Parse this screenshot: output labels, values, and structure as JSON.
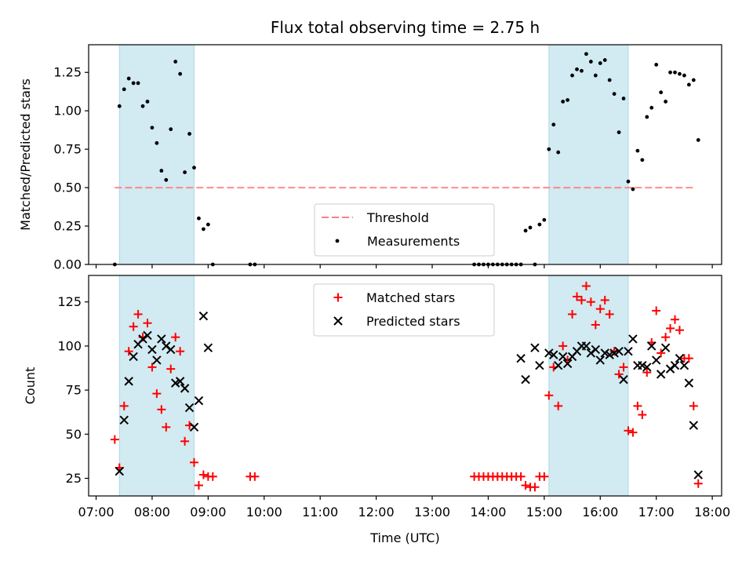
{
  "chart_data": [
    {
      "type": "scatter",
      "title": "Flux total observing time = 2.75 h",
      "ylabel": "Matched/Predicted stars",
      "xlabel": "",
      "ylim": [
        0,
        1.43
      ],
      "y_ticks": [
        "0.00",
        "0.25",
        "0.50",
        "0.75",
        "1.00",
        "1.25"
      ],
      "shaded_intervals": [
        [
          "07:25",
          "08:45"
        ],
        [
          "15:05",
          "16:30"
        ]
      ],
      "threshold": {
        "name": "Threshold",
        "value": 0.5,
        "x_range": [
          "07:20",
          "17:40"
        ],
        "color": "#ff7f7f"
      },
      "series": [
        {
          "name": "Measurements",
          "marker": "dot",
          "color": "#000000",
          "points": [
            [
              "07:20",
              0.0
            ],
            [
              "07:25",
              1.03
            ],
            [
              "07:30",
              1.14
            ],
            [
              "07:35",
              1.21
            ],
            [
              "07:40",
              1.18
            ],
            [
              "07:45",
              1.18
            ],
            [
              "07:50",
              1.03
            ],
            [
              "07:55",
              1.06
            ],
            [
              "08:00",
              0.89
            ],
            [
              "08:05",
              0.79
            ],
            [
              "08:10",
              0.61
            ],
            [
              "08:15",
              0.55
            ],
            [
              "08:20",
              0.88
            ],
            [
              "08:25",
              1.32
            ],
            [
              "08:30",
              1.24
            ],
            [
              "08:35",
              0.6
            ],
            [
              "08:40",
              0.85
            ],
            [
              "08:45",
              0.63
            ],
            [
              "08:50",
              0.3
            ],
            [
              "08:55",
              0.23
            ],
            [
              "09:00",
              0.26
            ],
            [
              "09:05",
              0.0
            ],
            [
              "09:45",
              0.0
            ],
            [
              "09:50",
              0.0
            ],
            [
              "13:45",
              0.0
            ],
            [
              "13:50",
              0.0
            ],
            [
              "13:55",
              0.0
            ],
            [
              "14:00",
              0.0
            ],
            [
              "14:05",
              0.0
            ],
            [
              "14:10",
              0.0
            ],
            [
              "14:15",
              0.0
            ],
            [
              "14:20",
              0.0
            ],
            [
              "14:25",
              0.0
            ],
            [
              "14:30",
              0.0
            ],
            [
              "14:35",
              0.0
            ],
            [
              "14:40",
              0.22
            ],
            [
              "14:45",
              0.24
            ],
            [
              "14:50",
              0.0
            ],
            [
              "14:55",
              0.26
            ],
            [
              "15:00",
              0.29
            ],
            [
              "15:05",
              0.75
            ],
            [
              "15:10",
              0.91
            ],
            [
              "15:15",
              0.73
            ],
            [
              "15:20",
              1.06
            ],
            [
              "15:25",
              1.07
            ],
            [
              "15:30",
              1.23
            ],
            [
              "15:35",
              1.27
            ],
            [
              "15:40",
              1.26
            ],
            [
              "15:45",
              1.37
            ],
            [
              "15:50",
              1.32
            ],
            [
              "15:55",
              1.23
            ],
            [
              "16:00",
              1.31
            ],
            [
              "16:05",
              1.33
            ],
            [
              "16:10",
              1.2
            ],
            [
              "16:15",
              1.11
            ],
            [
              "16:20",
              0.86
            ],
            [
              "16:25",
              1.08
            ],
            [
              "16:30",
              0.54
            ],
            [
              "16:35",
              0.49
            ],
            [
              "16:40",
              0.74
            ],
            [
              "16:45",
              0.68
            ],
            [
              "16:50",
              0.96
            ],
            [
              "16:55",
              1.02
            ],
            [
              "17:00",
              1.3
            ],
            [
              "17:05",
              1.12
            ],
            [
              "17:10",
              1.06
            ],
            [
              "17:15",
              1.25
            ],
            [
              "17:20",
              1.25
            ],
            [
              "17:25",
              1.24
            ],
            [
              "17:30",
              1.23
            ],
            [
              "17:35",
              1.17
            ],
            [
              "17:40",
              1.2
            ],
            [
              "17:45",
              0.81
            ]
          ]
        }
      ],
      "legend": {
        "position": "lower center",
        "entries": [
          "Threshold",
          "Measurements"
        ]
      }
    },
    {
      "type": "scatter",
      "title": "",
      "ylabel": "Count",
      "xlabel": "Time (UTC)",
      "ylim": [
        15,
        140
      ],
      "y_ticks": [
        "25",
        "50",
        "75",
        "100",
        "125"
      ],
      "x_ticks": [
        "07:00",
        "08:00",
        "09:00",
        "10:00",
        "11:00",
        "12:00",
        "13:00",
        "14:00",
        "15:00",
        "16:00",
        "17:00",
        "18:00"
      ],
      "x_range": [
        "06:52",
        "18:10"
      ],
      "shaded_intervals": [
        [
          "07:25",
          "08:45"
        ],
        [
          "15:05",
          "16:30"
        ]
      ],
      "series": [
        {
          "name": "Matched stars",
          "marker": "plus",
          "color": "#ff0000",
          "points": [
            [
              "07:20",
              47
            ],
            [
              "07:25",
              31
            ],
            [
              "07:30",
              66
            ],
            [
              "07:35",
              97
            ],
            [
              "07:40",
              111
            ],
            [
              "07:45",
              118
            ],
            [
              "07:50",
              105
            ],
            [
              "07:55",
              113
            ],
            [
              "08:00",
              88
            ],
            [
              "08:05",
              73
            ],
            [
              "08:10",
              64
            ],
            [
              "08:15",
              54
            ],
            [
              "08:20",
              87
            ],
            [
              "08:25",
              105
            ],
            [
              "08:30",
              97
            ],
            [
              "08:35",
              46
            ],
            [
              "08:40",
              55
            ],
            [
              "08:45",
              34
            ],
            [
              "08:50",
              21
            ],
            [
              "08:55",
              27
            ],
            [
              "09:00",
              26
            ],
            [
              "09:05",
              26
            ],
            [
              "09:45",
              26
            ],
            [
              "09:50",
              26
            ],
            [
              "13:45",
              26
            ],
            [
              "13:50",
              26
            ],
            [
              "13:55",
              26
            ],
            [
              "14:00",
              26
            ],
            [
              "14:05",
              26
            ],
            [
              "14:10",
              26
            ],
            [
              "14:15",
              26
            ],
            [
              "14:20",
              26
            ],
            [
              "14:25",
              26
            ],
            [
              "14:30",
              26
            ],
            [
              "14:35",
              26
            ],
            [
              "14:40",
              21
            ],
            [
              "14:45",
              20
            ],
            [
              "14:50",
              20
            ],
            [
              "14:55",
              26
            ],
            [
              "15:00",
              26
            ],
            [
              "15:05",
              72
            ],
            [
              "15:10",
              88
            ],
            [
              "15:15",
              66
            ],
            [
              "15:20",
              100
            ],
            [
              "15:25",
              92
            ],
            [
              "15:30",
              118
            ],
            [
              "15:35",
              128
            ],
            [
              "15:40",
              126
            ],
            [
              "15:45",
              134
            ],
            [
              "15:50",
              125
            ],
            [
              "15:55",
              112
            ],
            [
              "16:00",
              121
            ],
            [
              "16:05",
              126
            ],
            [
              "16:10",
              118
            ],
            [
              "16:15",
              97
            ],
            [
              "16:20",
              84
            ],
            [
              "16:25",
              88
            ],
            [
              "16:30",
              52
            ],
            [
              "16:35",
              51
            ],
            [
              "16:40",
              66
            ],
            [
              "16:45",
              61
            ],
            [
              "16:50",
              85
            ],
            [
              "16:55",
              102
            ],
            [
              "17:00",
              120
            ],
            [
              "17:05",
              96
            ],
            [
              "17:10",
              105
            ],
            [
              "17:15",
              110
            ],
            [
              "17:20",
              115
            ],
            [
              "17:25",
              109
            ],
            [
              "17:30",
              93
            ],
            [
              "17:35",
              93
            ],
            [
              "17:40",
              66
            ],
            [
              "17:45",
              22
            ]
          ]
        },
        {
          "name": "Predicted stars",
          "marker": "x",
          "color": "#000000",
          "points": [
            [
              "07:25",
              29
            ],
            [
              "07:30",
              58
            ],
            [
              "07:35",
              80
            ],
            [
              "07:40",
              94
            ],
            [
              "07:45",
              101
            ],
            [
              "07:50",
              104
            ],
            [
              "07:55",
              106
            ],
            [
              "08:00",
              98
            ],
            [
              "08:05",
              92
            ],
            [
              "08:10",
              104
            ],
            [
              "08:15",
              100
            ],
            [
              "08:20",
              98
            ],
            [
              "08:25",
              79
            ],
            [
              "08:30",
              80
            ],
            [
              "08:35",
              76
            ],
            [
              "08:40",
              65
            ],
            [
              "08:45",
              54
            ],
            [
              "08:50",
              69
            ],
            [
              "08:55",
              117
            ],
            [
              "09:00",
              99
            ],
            [
              "14:35",
              93
            ],
            [
              "14:40",
              81
            ],
            [
              "14:50",
              99
            ],
            [
              "14:55",
              89
            ],
            [
              "15:05",
              96
            ],
            [
              "15:10",
              95
            ],
            [
              "15:15",
              89
            ],
            [
              "15:20",
              94
            ],
            [
              "15:25",
              90
            ],
            [
              "15:30",
              94
            ],
            [
              "15:35",
              97
            ],
            [
              "15:40",
              100
            ],
            [
              "15:45",
              100
            ],
            [
              "15:50",
              96
            ],
            [
              "15:55",
              98
            ],
            [
              "16:00",
              92
            ],
            [
              "16:05",
              96
            ],
            [
              "16:10",
              95
            ],
            [
              "16:15",
              96
            ],
            [
              "16:20",
              97
            ],
            [
              "16:25",
              81
            ],
            [
              "16:30",
              97
            ],
            [
              "16:35",
              104
            ],
            [
              "16:40",
              89
            ],
            [
              "16:45",
              89
            ],
            [
              "16:50",
              88
            ],
            [
              "16:55",
              100
            ],
            [
              "17:00",
              92
            ],
            [
              "17:05",
              84
            ],
            [
              "17:10",
              99
            ],
            [
              "17:15",
              87
            ],
            [
              "17:20",
              89
            ],
            [
              "17:25",
              93
            ],
            [
              "17:30",
              89
            ],
            [
              "17:35",
              79
            ],
            [
              "17:40",
              55
            ],
            [
              "17:45",
              27
            ]
          ]
        }
      ],
      "legend": {
        "position": "upper center",
        "entries": [
          "Matched stars",
          "Predicted stars"
        ]
      }
    }
  ]
}
